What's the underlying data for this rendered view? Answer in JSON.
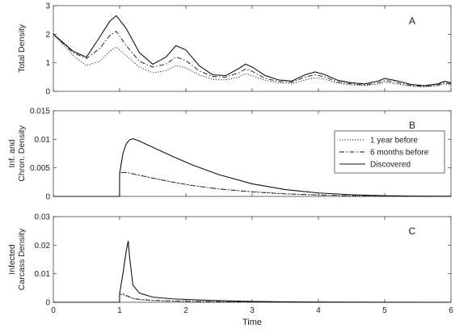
{
  "chart_data": [
    {
      "type": "line",
      "panel_label": "A",
      "ylabel": "Total Density",
      "xlabel": "",
      "xlim": [
        0,
        6
      ],
      "ylim": [
        0,
        3
      ],
      "yticks": [
        0,
        1,
        2,
        3
      ],
      "xticks": [
        0,
        1,
        2,
        3,
        4,
        5,
        6
      ],
      "grid": false,
      "legend": "none",
      "series": [
        {
          "name": "1 year before",
          "style": "dotted",
          "x": [
            0,
            0.3,
            0.5,
            0.7,
            0.85,
            0.95,
            1.1,
            1.3,
            1.5,
            1.7,
            1.85,
            2.0,
            2.2,
            2.4,
            2.6,
            2.8,
            2.9,
            3.0,
            3.2,
            3.4,
            3.6,
            3.8,
            3.95,
            4.1,
            4.3,
            4.5,
            4.7,
            4.9,
            5.0,
            5.2,
            5.4,
            5.6,
            5.8,
            5.9,
            6.0
          ],
          "y": [
            2.0,
            1.25,
            0.9,
            1.05,
            1.4,
            1.55,
            1.25,
            0.85,
            0.65,
            0.72,
            0.9,
            0.82,
            0.58,
            0.42,
            0.4,
            0.5,
            0.62,
            0.55,
            0.38,
            0.3,
            0.27,
            0.4,
            0.48,
            0.42,
            0.28,
            0.22,
            0.2,
            0.25,
            0.32,
            0.25,
            0.18,
            0.15,
            0.2,
            0.26,
            0.22
          ]
        },
        {
          "name": "6 months before",
          "style": "dashdot",
          "x": [
            0,
            0.3,
            0.5,
            0.7,
            0.85,
            0.95,
            1.1,
            1.3,
            1.5,
            1.7,
            1.85,
            2.0,
            2.2,
            2.4,
            2.6,
            2.8,
            2.9,
            3.0,
            3.2,
            3.4,
            3.6,
            3.8,
            3.95,
            4.1,
            4.3,
            4.5,
            4.7,
            4.9,
            5.0,
            5.2,
            5.4,
            5.6,
            5.8,
            5.9,
            6.0
          ],
          "y": [
            2.0,
            1.35,
            1.15,
            1.5,
            1.95,
            2.1,
            1.6,
            1.05,
            0.85,
            0.95,
            1.2,
            1.08,
            0.72,
            0.52,
            0.5,
            0.65,
            0.78,
            0.7,
            0.45,
            0.35,
            0.32,
            0.5,
            0.58,
            0.5,
            0.32,
            0.26,
            0.22,
            0.3,
            0.38,
            0.3,
            0.2,
            0.17,
            0.22,
            0.3,
            0.26
          ]
        },
        {
          "name": "Discovered",
          "style": "solid",
          "x": [
            0,
            0.3,
            0.5,
            0.7,
            0.85,
            0.95,
            1.1,
            1.3,
            1.5,
            1.7,
            1.85,
            2.0,
            2.2,
            2.4,
            2.6,
            2.8,
            2.9,
            3.0,
            3.2,
            3.4,
            3.6,
            3.8,
            3.95,
            4.1,
            4.3,
            4.5,
            4.7,
            4.9,
            5.0,
            5.2,
            5.4,
            5.6,
            5.8,
            5.9,
            6.0
          ],
          "y": [
            2.0,
            1.4,
            1.2,
            1.9,
            2.45,
            2.65,
            2.2,
            1.35,
            0.95,
            1.2,
            1.6,
            1.45,
            0.9,
            0.58,
            0.55,
            0.8,
            0.95,
            0.85,
            0.55,
            0.4,
            0.36,
            0.58,
            0.68,
            0.58,
            0.38,
            0.3,
            0.26,
            0.36,
            0.45,
            0.36,
            0.24,
            0.2,
            0.26,
            0.35,
            0.3
          ]
        }
      ]
    },
    {
      "type": "line",
      "panel_label": "B",
      "ylabel": "Inf. and Chron. Density",
      "ylabel_lines": [
        "Inf. and",
        "Chron. Density"
      ],
      "xlabel": "",
      "xlim": [
        0,
        6
      ],
      "ylim": [
        0,
        0.015
      ],
      "yticks": [
        0,
        0.005,
        0.01,
        0.015
      ],
      "ytick_labels": [
        "0",
        "0.005",
        "0.01",
        "0.015"
      ],
      "xticks": [
        0,
        1,
        2,
        3,
        4,
        5,
        6
      ],
      "grid": false,
      "legend": "right",
      "series": [
        {
          "name": "1 year before",
          "style": "dotted",
          "x": [
            0,
            0.999,
            1.0,
            1.05,
            1.1,
            1.3,
            1.5,
            1.8,
            2.1,
            2.5,
            3.0,
            3.5,
            4.0,
            4.5,
            5.0,
            5.5,
            6.0
          ],
          "y": [
            0,
            0,
            0.004,
            0.0042,
            0.0042,
            0.0037,
            0.0032,
            0.0025,
            0.0019,
            0.0013,
            0.0008,
            0.00045,
            0.00025,
            0.00012,
            5e-05,
            2e-05,
            1e-05
          ]
        },
        {
          "name": "6 months before",
          "style": "dashdot",
          "x": [
            0,
            0.999,
            1.0,
            1.05,
            1.1,
            1.3,
            1.5,
            1.8,
            2.1,
            2.5,
            3.0,
            3.5,
            4.0,
            4.5,
            5.0,
            5.5,
            6.0
          ],
          "y": [
            0,
            0,
            0.004,
            0.0042,
            0.0042,
            0.0037,
            0.0032,
            0.0025,
            0.0019,
            0.0013,
            0.0008,
            0.00045,
            0.00025,
            0.00012,
            5e-05,
            2e-05,
            1e-05
          ]
        },
        {
          "name": "Discovered",
          "style": "solid",
          "x": [
            0,
            0.999,
            1.0,
            1.05,
            1.1,
            1.15,
            1.2,
            1.3,
            1.5,
            1.8,
            2.1,
            2.5,
            3.0,
            3.5,
            4.0,
            4.5,
            5.0,
            5.5,
            6.0
          ],
          "y": [
            0,
            0,
            0.004,
            0.0075,
            0.0092,
            0.0099,
            0.0101,
            0.0097,
            0.0086,
            0.007,
            0.0055,
            0.0038,
            0.0022,
            0.0012,
            0.0006,
            0.0003,
            0.00012,
            5e-05,
            2e-05
          ]
        }
      ]
    },
    {
      "type": "line",
      "panel_label": "C",
      "ylabel": "Infected Carcass Density",
      "ylabel_lines": [
        "Infected",
        "Carcass Density"
      ],
      "xlabel": "Time",
      "xlim": [
        0,
        6
      ],
      "ylim": [
        0,
        0.03
      ],
      "yticks": [
        0,
        0.01,
        0.02,
        0.03
      ],
      "ytick_labels": [
        "0",
        "0.01",
        "0.02",
        "0.03"
      ],
      "xticks": [
        0,
        1,
        2,
        3,
        4,
        5,
        6
      ],
      "grid": false,
      "legend": "none",
      "series": [
        {
          "name": "1 year before",
          "style": "dotted",
          "x": [
            0,
            0.999,
            1.0,
            1.05,
            1.1,
            1.2,
            1.3,
            1.5,
            1.8,
            2.2,
            2.6,
            3.0,
            3.5,
            4.0,
            5.0,
            6.0
          ],
          "y": [
            0,
            0,
            0.0025,
            0.0028,
            0.0022,
            0.0013,
            0.0009,
            0.0006,
            0.0004,
            0.00025,
            0.00015,
            0.0001,
            5e-05,
            3e-05,
            1e-05,
            0
          ]
        },
        {
          "name": "6 months before",
          "style": "dashdot",
          "x": [
            0,
            0.999,
            1.0,
            1.05,
            1.1,
            1.2,
            1.3,
            1.5,
            1.8,
            2.2,
            2.6,
            3.0,
            3.5,
            4.0,
            5.0,
            6.0
          ],
          "y": [
            0,
            0,
            0.0028,
            0.003,
            0.0024,
            0.0014,
            0.001,
            0.0007,
            0.00045,
            0.00028,
            0.00017,
            0.00011,
            6e-05,
            3e-05,
            1e-05,
            0
          ]
        },
        {
          "name": "Discovered",
          "style": "solid",
          "x": [
            0,
            0.999,
            1.0,
            1.05,
            1.1,
            1.13,
            1.15,
            1.2,
            1.3,
            1.5,
            1.8,
            2.2,
            2.6,
            3.0,
            3.5,
            4.0,
            5.0,
            6.0
          ],
          "y": [
            0,
            0,
            0.003,
            0.01,
            0.018,
            0.0215,
            0.016,
            0.006,
            0.0032,
            0.0018,
            0.0012,
            0.0008,
            0.0005,
            0.0003,
            0.00015,
            8e-05,
            2e-05,
            0
          ]
        }
      ]
    }
  ],
  "legend": {
    "entries": [
      "1 year before",
      "6 months before",
      "Discovered"
    ]
  },
  "colors": {
    "line": "#111111",
    "axis": "#444444",
    "text": "#222222",
    "background": "#ffffff"
  }
}
